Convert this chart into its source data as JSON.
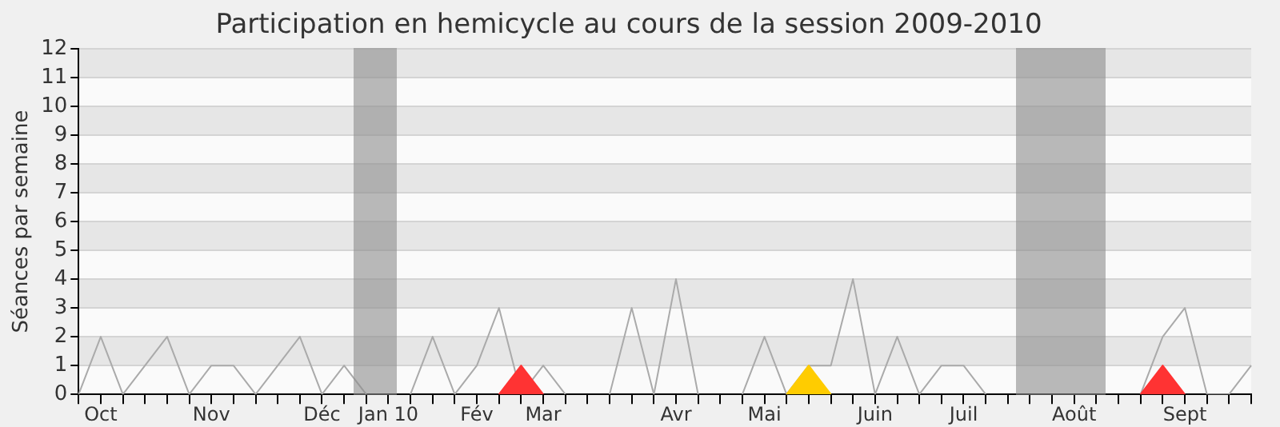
{
  "chart_data": {
    "type": "line",
    "title": "Participation en hemicycle au cours de la session 2009-2010",
    "ylabel": "Séances par semaine",
    "categories": [
      null,
      "Oct",
      null,
      null,
      null,
      null,
      "Nov",
      null,
      null,
      null,
      null,
      "Déc",
      null,
      null,
      "Jan 10",
      null,
      null,
      null,
      "Fév",
      null,
      null,
      "Mar",
      null,
      null,
      null,
      null,
      null,
      "Avr",
      null,
      null,
      null,
      "Mai",
      null,
      null,
      null,
      null,
      "Juin",
      null,
      null,
      null,
      "Juil",
      null,
      null,
      null,
      null,
      "Août",
      null,
      null,
      null,
      null,
      "Sept",
      null,
      null,
      null
    ],
    "series": [
      {
        "color": "#aaaaaa",
        "values": [
          0,
          2,
          0,
          1,
          2,
          0,
          1,
          1,
          0,
          1,
          2,
          0,
          1,
          0,
          null,
          0,
          2,
          0,
          1,
          3,
          0,
          1,
          0,
          null,
          0,
          3,
          0,
          4,
          0,
          null,
          0,
          2,
          0,
          1,
          1,
          4,
          0,
          2,
          0,
          1,
          1,
          0,
          null,
          null,
          null,
          null,
          null,
          null,
          0,
          2,
          3,
          0,
          0,
          1
        ]
      },
      {
        "type": "area",
        "color": "#ff3333",
        "values": [
          null,
          null,
          null,
          null,
          null,
          null,
          null,
          null,
          null,
          null,
          null,
          null,
          null,
          null,
          null,
          null,
          null,
          null,
          null,
          0,
          1,
          0,
          null,
          null,
          null,
          null,
          null,
          null,
          null,
          null,
          null,
          null,
          null,
          null,
          null,
          null,
          null,
          null,
          null,
          null,
          null,
          null,
          null,
          null,
          null,
          null,
          null,
          null,
          null,
          null,
          null,
          null,
          null,
          null
        ]
      },
      {
        "type": "area",
        "color": "#ffcc00",
        "values": [
          null,
          null,
          null,
          null,
          null,
          null,
          null,
          null,
          null,
          null,
          null,
          null,
          null,
          null,
          null,
          null,
          null,
          null,
          null,
          null,
          null,
          null,
          null,
          null,
          null,
          null,
          null,
          null,
          null,
          null,
          null,
          null,
          0,
          1,
          0,
          null,
          null,
          null,
          null,
          null,
          null,
          null,
          null,
          null,
          null,
          null,
          null,
          null,
          null,
          null,
          null,
          null,
          null,
          null
        ]
      },
      {
        "type": "area",
        "color": "#ff3333",
        "values": [
          null,
          null,
          null,
          null,
          null,
          null,
          null,
          null,
          null,
          null,
          null,
          null,
          null,
          null,
          null,
          null,
          null,
          null,
          null,
          null,
          null,
          null,
          null,
          null,
          null,
          null,
          null,
          null,
          null,
          null,
          null,
          null,
          null,
          null,
          null,
          null,
          null,
          null,
          null,
          null,
          null,
          null,
          null,
          null,
          null,
          null,
          null,
          null,
          0,
          1,
          0,
          null,
          null,
          null
        ]
      }
    ],
    "ylim": [
      0,
      12
    ],
    "yticks": [
      0,
      1,
      2,
      3,
      4,
      5,
      6,
      7,
      8,
      9,
      10,
      11,
      12
    ],
    "grid": "y",
    "legend": false,
    "marker": "none"
  }
}
